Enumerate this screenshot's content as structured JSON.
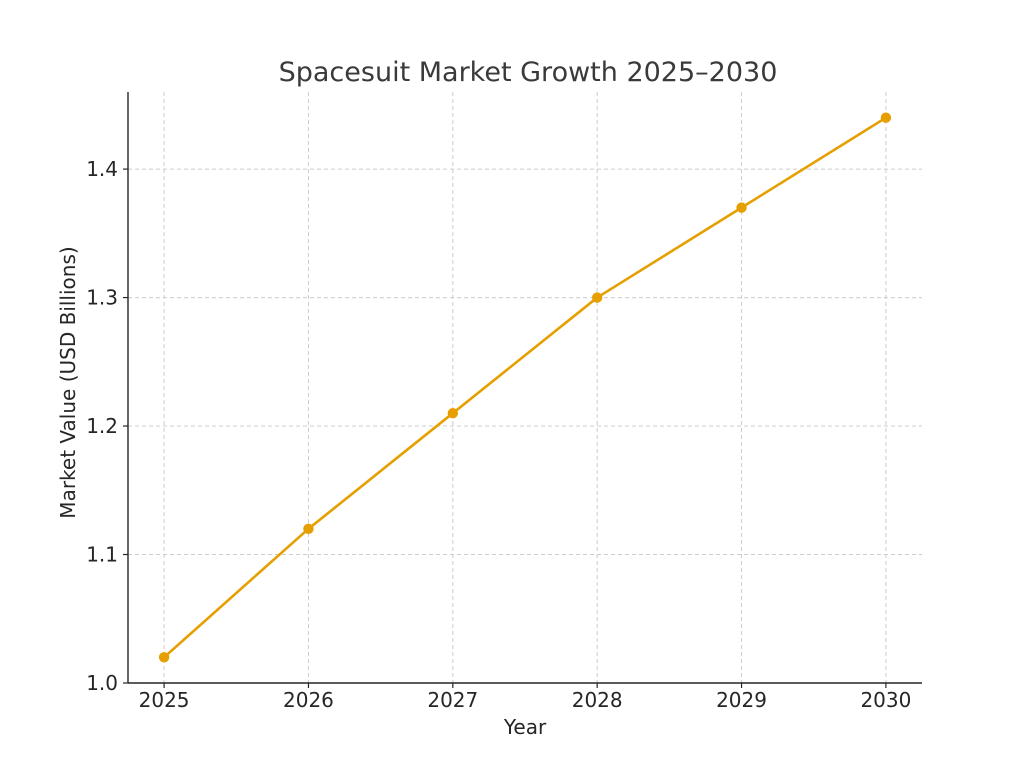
{
  "chart_data": {
    "type": "line",
    "title": "Spacesuit Market Growth 2025–2030",
    "xlabel": "Year",
    "ylabel": "Market Value (USD Billions)",
    "x": [
      2025,
      2026,
      2027,
      2028,
      2029,
      2030
    ],
    "x_tick_labels": [
      "2025",
      "2026",
      "2027",
      "2028",
      "2029",
      "2030"
    ],
    "y_ticks": [
      1.0,
      1.1,
      1.2,
      1.3,
      1.4
    ],
    "y_tick_labels": [
      "1.0",
      "1.1",
      "1.2",
      "1.3",
      "1.4"
    ],
    "ylim": [
      1.0,
      1.46
    ],
    "xlim": [
      2024.75,
      2030.25
    ],
    "grid": true,
    "series": [
      {
        "values": [
          1.02,
          1.12,
          1.21,
          1.3,
          1.37,
          1.44
        ],
        "color": "#e69f00",
        "marker": "circle"
      }
    ]
  }
}
